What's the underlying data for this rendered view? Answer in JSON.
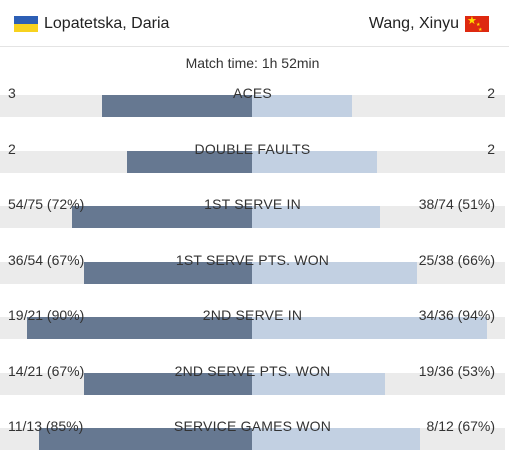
{
  "players": {
    "left": {
      "name": "Lopatetska, Daria",
      "flag": "ukraine-flag"
    },
    "right": {
      "name": "Wang, Xinyu",
      "flag": "china-flag"
    }
  },
  "match_time": "Match time: 1h 52min",
  "colors": {
    "left_bar": "#667891",
    "right_bar": "#c2d0e2",
    "track": "#ebebeb"
  },
  "stats": [
    {
      "label": "ACES",
      "left": "3",
      "right": "2",
      "left_fraction": 0.6,
      "right_fraction": 0.4
    },
    {
      "label": "DOUBLE FAULTS",
      "left": "2",
      "right": "2",
      "left_fraction": 0.5,
      "right_fraction": 0.5
    },
    {
      "label": "1ST SERVE IN",
      "left": "54/75 (72%)",
      "right": "38/74 (51%)",
      "left_fraction": 0.72,
      "right_fraction": 0.51
    },
    {
      "label": "1ST SERVE PTS. WON",
      "left": "36/54 (67%)",
      "right": "25/38 (66%)",
      "left_fraction": 0.67,
      "right_fraction": 0.66
    },
    {
      "label": "2ND SERVE IN",
      "left": "19/21 (90%)",
      "right": "34/36 (94%)",
      "left_fraction": 0.9,
      "right_fraction": 0.94
    },
    {
      "label": "2ND SERVE PTS. WON",
      "left": "14/21 (67%)",
      "right": "19/36 (53%)",
      "left_fraction": 0.67,
      "right_fraction": 0.53
    },
    {
      "label": "SERVICE GAMES WON",
      "left": "11/13 (85%)",
      "right": "8/12 (67%)",
      "left_fraction": 0.85,
      "right_fraction": 0.67
    }
  ]
}
